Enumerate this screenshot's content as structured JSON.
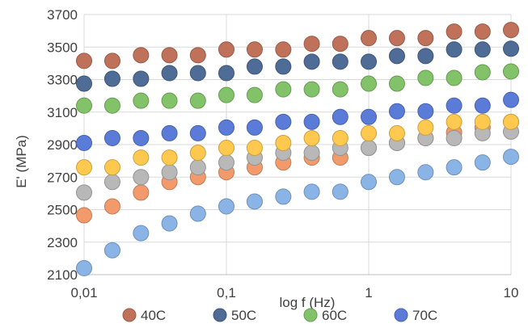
{
  "chart_data": {
    "type": "scatter",
    "xlabel": "log f (Hz)",
    "ylabel": "E' (MPa)",
    "x_scale": "log",
    "xlim": [
      0.01,
      10
    ],
    "ylim": [
      2100,
      3700
    ],
    "y_ticks": [
      2100,
      2300,
      2500,
      2700,
      2900,
      3100,
      3300,
      3500,
      3700
    ],
    "x_ticks": [
      0.01,
      0.1,
      1,
      10
    ],
    "x_tick_labels": [
      "0,01",
      "0,1",
      "1",
      "10"
    ],
    "grid": true,
    "legend_position": "bottom",
    "x": [
      0.01,
      0.0158,
      0.0251,
      0.0398,
      0.0631,
      0.1,
      0.158,
      0.251,
      0.398,
      0.631,
      1,
      1.58,
      2.51,
      3.98,
      6.31,
      10
    ],
    "series": [
      {
        "name": "40C",
        "color": "#C0715A",
        "values": [
          3415,
          3415,
          3450,
          3450,
          3450,
          3485,
          3485,
          3485,
          3520,
          3520,
          3555,
          3555,
          3555,
          3595,
          3595,
          3605
        ]
      },
      {
        "name": "50C",
        "color": "#4E6C96",
        "values": [
          3275,
          3305,
          3305,
          3340,
          3340,
          3340,
          3380,
          3380,
          3410,
          3410,
          3410,
          3445,
          3445,
          3485,
          3485,
          3490
        ]
      },
      {
        "name": "60C",
        "color": "#82C268",
        "values": [
          3140,
          3140,
          3170,
          3170,
          3170,
          3205,
          3205,
          3240,
          3240,
          3240,
          3275,
          3275,
          3310,
          3310,
          3345,
          3350
        ]
      },
      {
        "name": "70C",
        "color": "#5B7BD8",
        "values": [
          2910,
          2940,
          2940,
          2970,
          2970,
          3005,
          3005,
          3040,
          3040,
          3070,
          3070,
          3105,
          3105,
          3140,
          3140,
          3175
        ]
      },
      {
        "name": "",
        "color": "#FFC84E",
        "values": [
          2760,
          2760,
          2820,
          2820,
          2850,
          2880,
          2880,
          2910,
          2940,
          2940,
          2970,
          2970,
          3005,
          3040,
          3040,
          3040
        ]
      },
      {
        "name": "",
        "color": "#B8B8B8",
        "values": [
          2605,
          2670,
          2700,
          2730,
          2760,
          2790,
          2820,
          2850,
          2850,
          2880,
          2880,
          2910,
          2940,
          2940,
          2970,
          2980
        ]
      },
      {
        "name": "",
        "color": "#F29A6B",
        "values": [
          2465,
          2520,
          2605,
          2670,
          2700,
          2730,
          2760,
          2790,
          2820,
          2820,
          2880,
          2910,
          2940,
          2975,
          3005,
          3040
        ]
      },
      {
        "name": "",
        "color": "#8BB4E6",
        "values": [
          2140,
          2250,
          2355,
          2415,
          2475,
          2520,
          2550,
          2580,
          2610,
          2610,
          2670,
          2700,
          2730,
          2760,
          2790,
          2825
        ]
      }
    ]
  }
}
